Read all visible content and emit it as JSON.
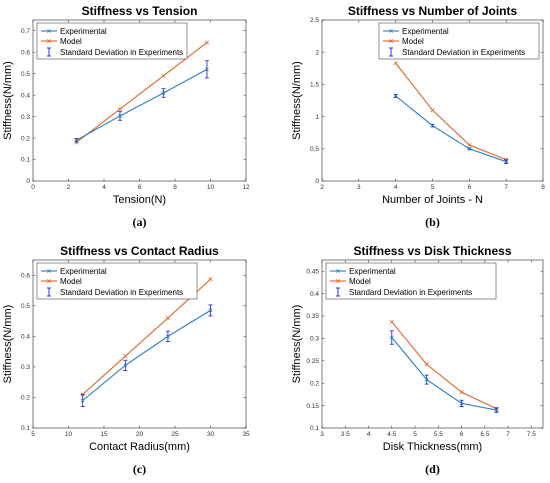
{
  "colors": {
    "experimental": "#2a7fc1",
    "model": "#e0652a",
    "errorbar": "#1a1ae6"
  },
  "legend_labels": [
    "Experimental",
    "Model",
    "Standard Deviation in Experiments"
  ],
  "chart_data": [
    {
      "type": "line",
      "title": "Stiffness vs Tension",
      "xlabel": "Tension(N)",
      "ylabel": "Stiffness(N/mm)",
      "caption": "(a)",
      "xlim": [
        0,
        12
      ],
      "ylim": [
        0,
        0.75
      ],
      "xticks": [
        0,
        2,
        4,
        6,
        8,
        10,
        12
      ],
      "yticks": [
        0,
        0.1,
        0.2,
        0.3,
        0.4,
        0.5,
        0.6,
        0.7
      ],
      "legend": "top-left",
      "series": [
        {
          "name": "Experimental",
          "x": [
            2.45,
            4.9,
            7.35,
            9.8
          ],
          "y": [
            0.19,
            0.303,
            0.41,
            0.52
          ],
          "err": [
            0.008,
            0.02,
            0.02,
            0.04
          ]
        },
        {
          "name": "Model",
          "x": [
            2.45,
            4.9,
            7.35,
            9.8
          ],
          "y": [
            0.18,
            0.335,
            0.49,
            0.645
          ]
        }
      ]
    },
    {
      "type": "line",
      "title": "Stiffness vs Number of Joints",
      "xlabel": "Number of Joints - N",
      "ylabel": "Stiffness(N/mm)",
      "caption": "(b)",
      "xlim": [
        2,
        8
      ],
      "ylim": [
        0,
        2.5
      ],
      "xticks": [
        2,
        3,
        4,
        5,
        6,
        7,
        8
      ],
      "yticks": [
        0,
        0.5,
        1,
        1.5,
        2,
        2.5
      ],
      "legend": "top-right",
      "series": [
        {
          "name": "Experimental",
          "x": [
            4,
            5,
            6,
            7
          ],
          "y": [
            1.32,
            0.86,
            0.5,
            0.3
          ],
          "err": [
            0.025,
            0.02,
            0.015,
            0.03
          ]
        },
        {
          "name": "Model",
          "x": [
            4,
            5,
            6,
            7
          ],
          "y": [
            1.83,
            1.1,
            0.56,
            0.33
          ]
        }
      ]
    },
    {
      "type": "line",
      "title": "Stiffness vs Contact Radius",
      "xlabel": "Contact Radius(mm)",
      "ylabel": "Stiffness(N/mm)",
      "caption": "(c)",
      "xlim": [
        5,
        35
      ],
      "ylim": [
        0.1,
        0.65
      ],
      "xticks": [
        5,
        10,
        15,
        20,
        25,
        30,
        35
      ],
      "yticks": [
        0.1,
        0.2,
        0.3,
        0.4,
        0.5,
        0.6
      ],
      "legend": "top-left",
      "series": [
        {
          "name": "Experimental",
          "x": [
            12,
            18,
            24,
            30
          ],
          "y": [
            0.19,
            0.305,
            0.4,
            0.485
          ],
          "err": [
            0.02,
            0.017,
            0.017,
            0.018
          ]
        },
        {
          "name": "Model",
          "x": [
            12,
            18,
            24,
            30
          ],
          "y": [
            0.21,
            0.335,
            0.46,
            0.587
          ]
        }
      ]
    },
    {
      "type": "line",
      "title": "Stiffness vs Disk Thickness",
      "xlabel": "Disk Thickness(mm)",
      "ylabel": "Stiffness(N/mm)",
      "caption": "(d)",
      "xlim": [
        3,
        7.75
      ],
      "ylim": [
        0.1,
        0.475
      ],
      "xticks": [
        3,
        3.5,
        4,
        4.5,
        5,
        5.5,
        6,
        6.5,
        7,
        7.5
      ],
      "yticks": [
        0.1,
        0.15,
        0.2,
        0.25,
        0.3,
        0.35,
        0.4,
        0.45
      ],
      "legend": "top-left",
      "series": [
        {
          "name": "Experimental",
          "x": [
            4.5,
            5.25,
            6,
            6.75
          ],
          "y": [
            0.302,
            0.208,
            0.155,
            0.14
          ],
          "err": [
            0.015,
            0.01,
            0.007,
            0.005
          ]
        },
        {
          "name": "Model",
          "x": [
            4.5,
            5.25,
            6,
            6.75
          ],
          "y": [
            0.337,
            0.242,
            0.18,
            0.143
          ]
        }
      ]
    }
  ]
}
